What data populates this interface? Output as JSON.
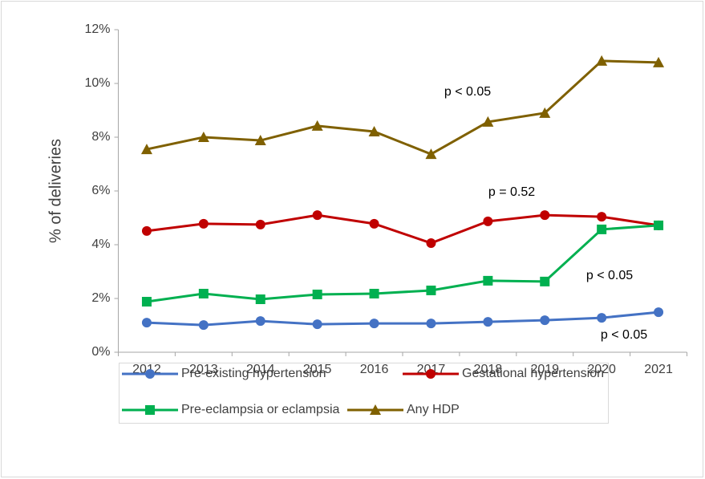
{
  "chart_data": {
    "type": "line",
    "y_label": "% of deliveries",
    "categories": [
      "2012",
      "2013",
      "2014",
      "2015",
      "2016",
      "2017",
      "2018",
      "2019",
      "2020",
      "2021"
    ],
    "series": [
      {
        "name": "Pre-existing hypertension",
        "color": "#4472c4",
        "marker": "circle",
        "values": [
          1.1,
          1.01,
          1.16,
          1.04,
          1.07,
          1.07,
          1.13,
          1.19,
          1.28,
          1.49
        ]
      },
      {
        "name": "Gestational hypertension",
        "color": "#c00000",
        "marker": "circle",
        "values": [
          4.51,
          4.78,
          4.75,
          5.1,
          4.78,
          4.06,
          4.87,
          5.1,
          5.04,
          4.72
        ]
      },
      {
        "name": "Pre-eclampsia or eclampsia",
        "color": "#00b050",
        "marker": "square",
        "values": [
          1.88,
          2.18,
          1.97,
          2.15,
          2.18,
          2.3,
          2.66,
          2.63,
          4.57,
          4.72
        ]
      },
      {
        "name": "Any HDP",
        "color": "#7f6000",
        "marker": "triangle",
        "values": [
          7.55,
          8.0,
          7.88,
          8.42,
          8.21,
          7.37,
          8.57,
          8.9,
          10.84,
          10.78
        ]
      }
    ],
    "annotations": [
      "p < 0.05",
      "p = 0.52",
      "p < 0.05",
      "p < 0.05"
    ],
    "ylim": [
      0,
      12
    ],
    "yticks": [
      {
        "value": 0,
        "label": "0%"
      },
      {
        "value": 2,
        "label": "2%"
      },
      {
        "value": 4,
        "label": "4%"
      },
      {
        "value": 6,
        "label": "6%"
      },
      {
        "value": 8,
        "label": "8%"
      },
      {
        "value": 10,
        "label": "10%"
      },
      {
        "value": 12,
        "label": "12%"
      }
    ],
    "grid": false,
    "legend": "bottom"
  }
}
